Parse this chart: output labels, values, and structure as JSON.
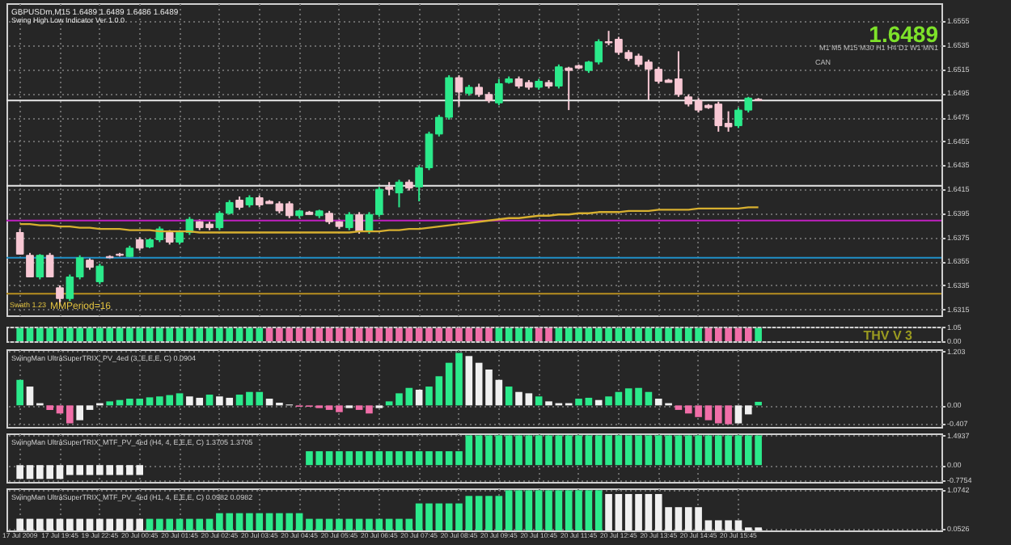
{
  "chart_data": [
    {
      "type": "candlestick",
      "title": "GBPUSDm,M15  1.6489 1.6489 1.6486 1.6489",
      "subtitle": "Swing High Low Indicator Ver 1.0.0",
      "annotations": [
        "1.6489",
        "M1 M5 M15 M30 H1 H4 D1 W1 MN1",
        "CAN",
        "Swath 1.23",
        "MMPeriod=16"
      ],
      "categories": [
        null,
        null,
        null,
        null,
        null,
        null,
        null,
        null,
        null,
        null,
        null,
        null,
        null,
        null,
        null,
        null,
        null,
        null,
        null,
        null,
        null,
        null,
        null,
        null,
        null,
        null,
        null,
        null,
        null,
        null,
        null,
        null,
        null,
        null,
        null,
        null,
        null,
        null,
        null,
        null,
        null,
        null,
        null,
        null,
        null,
        null,
        null,
        null,
        null,
        null,
        null,
        null,
        null,
        null,
        null,
        null,
        null,
        null,
        null,
        null,
        null,
        null,
        null,
        null,
        null,
        null,
        null,
        null,
        null,
        null,
        null,
        null,
        null,
        null,
        null,
        null,
        null,
        null,
        null,
        null,
        null,
        null,
        null,
        null,
        null,
        null,
        null,
        null,
        null,
        null,
        null,
        null
      ],
      "ohlc": [
        [
          1.6379,
          1.6382,
          1.6361,
          1.6361
        ],
        [
          1.636,
          1.6362,
          1.6342,
          1.6342
        ],
        [
          1.6342,
          1.6361,
          1.634,
          1.636
        ],
        [
          1.636,
          1.6362,
          1.6342,
          1.6342
        ],
        [
          1.6333,
          1.6335,
          1.6319,
          1.6324
        ],
        [
          1.6324,
          1.6344,
          1.6322,
          1.6342
        ],
        [
          1.6342,
          1.636,
          1.634,
          1.6358
        ],
        [
          1.6356,
          1.6358,
          1.6348,
          1.635
        ],
        [
          1.6338,
          1.6353,
          1.6336,
          1.6351
        ],
        [
          1.6358,
          1.636,
          1.6357,
          1.6359
        ],
        [
          1.636,
          1.6362,
          1.6359,
          1.6361
        ],
        [
          1.6359,
          1.6368,
          1.6358,
          1.6366
        ],
        [
          1.6373,
          1.6375,
          1.6364,
          1.6366
        ],
        [
          1.6367,
          1.6374,
          1.6366,
          1.6373
        ],
        [
          1.6373,
          1.6384,
          1.6371,
          1.6382
        ],
        [
          1.6379,
          1.6381,
          1.6369,
          1.6371
        ],
        [
          1.6371,
          1.6381,
          1.6369,
          1.6379
        ],
        [
          1.6379,
          1.6392,
          1.6377,
          1.639
        ],
        [
          1.6388,
          1.639,
          1.6381,
          1.6383
        ],
        [
          1.6386,
          1.6388,
          1.6381,
          1.6383
        ],
        [
          1.6383,
          1.6397,
          1.6381,
          1.6395
        ],
        [
          1.6395,
          1.6406,
          1.6394,
          1.6404
        ],
        [
          1.6406,
          1.6409,
          1.6398,
          1.64
        ],
        [
          1.6402,
          1.641,
          1.64,
          1.6408
        ],
        [
          1.6408,
          1.641,
          1.64,
          1.6402
        ],
        [
          1.6405,
          1.6406,
          1.6403,
          1.6403
        ],
        [
          1.6403,
          1.6405,
          1.6395,
          1.6397
        ],
        [
          1.6403,
          1.6405,
          1.6391,
          1.6393
        ],
        [
          1.6393,
          1.6398,
          1.6391,
          1.6397
        ],
        [
          1.6396,
          1.6397,
          1.6394,
          1.6394
        ],
        [
          1.6393,
          1.6398,
          1.6391,
          1.6397
        ],
        [
          1.6395,
          1.6397,
          1.6386,
          1.6388
        ],
        [
          1.6388,
          1.639,
          1.6382,
          1.6384
        ],
        [
          1.6383,
          1.6396,
          1.6381,
          1.6394
        ],
        [
          1.6394,
          1.6396,
          1.6378,
          1.638
        ],
        [
          1.638,
          1.6396,
          1.6378,
          1.6394
        ],
        [
          1.6394,
          1.6417,
          1.6392,
          1.6415
        ],
        [
          1.6417,
          1.6421,
          1.641,
          1.6415
        ],
        [
          1.6412,
          1.6423,
          1.64,
          1.6421
        ],
        [
          1.6421,
          1.6423,
          1.6414,
          1.6416
        ],
        [
          1.6417,
          1.6435,
          1.6405,
          1.6433
        ],
        [
          1.6433,
          1.6463,
          1.6431,
          1.6461
        ],
        [
          1.6461,
          1.6477,
          1.6459,
          1.6475
        ],
        [
          1.6475,
          1.651,
          1.6473,
          1.6508
        ],
        [
          1.6508,
          1.651,
          1.6484,
          1.6496
        ],
        [
          1.6495,
          1.6502,
          1.6493,
          1.65
        ],
        [
          1.65,
          1.6503,
          1.6492,
          1.6494
        ],
        [
          1.6494,
          1.6496,
          1.6487,
          1.6489
        ],
        [
          1.6487,
          1.6507,
          1.6485,
          1.6503
        ],
        [
          1.6504,
          1.6509,
          1.6503,
          1.6507
        ],
        [
          1.6507,
          1.6509,
          1.6499,
          1.6501
        ],
        [
          1.6504,
          1.6506,
          1.6498,
          1.65
        ],
        [
          1.65,
          1.6507,
          1.6498,
          1.6505
        ],
        [
          1.6504,
          1.6506,
          1.6499,
          1.6501
        ],
        [
          1.6501,
          1.6519,
          1.6499,
          1.6517
        ],
        [
          1.6516,
          1.6517,
          1.6481,
          1.6514
        ],
        [
          1.6518,
          1.6519,
          1.6515,
          1.6516
        ],
        [
          1.6514,
          1.6522,
          1.6512,
          1.6521
        ],
        [
          1.6521,
          1.654,
          1.6519,
          1.6538
        ],
        [
          1.6538,
          1.6547,
          1.6535,
          1.6537
        ],
        [
          1.654,
          1.6542,
          1.6527,
          1.6529
        ],
        [
          1.6529,
          1.6531,
          1.6522,
          1.6524
        ],
        [
          1.6526,
          1.6528,
          1.6517,
          1.6519
        ],
        [
          1.6521,
          1.6523,
          1.6489,
          1.6515
        ],
        [
          1.6515,
          1.6517,
          1.6503,
          1.6505
        ],
        [
          1.6506,
          1.6507,
          1.6504,
          1.6504
        ],
        [
          1.6507,
          1.653,
          1.6492,
          1.6494
        ],
        [
          1.6492,
          1.6494,
          1.6484,
          1.6486
        ],
        [
          1.6489,
          1.6491,
          1.6479,
          1.6481
        ],
        [
          1.6485,
          1.6486,
          1.6482,
          1.6483
        ],
        [
          1.6486,
          1.6488,
          1.6463,
          1.6468
        ],
        [
          1.647,
          1.648,
          1.6463,
          1.6467
        ],
        [
          1.6468,
          1.6483,
          1.6466,
          1.6481
        ],
        [
          1.6481,
          1.6492,
          1.6479,
          1.6491
        ],
        [
          1.649,
          1.6491,
          1.6489,
          1.6489
        ],
        null,
        null,
        null,
        null,
        null,
        null,
        null,
        null,
        null,
        null,
        null,
        null,
        null,
        null,
        null,
        null,
        null
      ],
      "colors": [
        "#f8c8d4",
        "#f8c8d4",
        "#2bea8b",
        "#f8c8d4",
        "#f8c8d4",
        "#2bea8b",
        "#2bea8b",
        "#f8c8d4",
        "#2bea8b",
        "#f8c8d4",
        "#f8c8d4",
        "#2bea8b",
        "#f8c8d4",
        "#2bea8b",
        "#2bea8b",
        "#f8c8d4",
        "#2bea8b",
        "#2bea8b",
        "#f8c8d4",
        "#f8c8d4",
        "#2bea8b",
        "#2bea8b",
        "#f8c8d4",
        "#2bea8b",
        "#f8c8d4",
        "#f8c8d4",
        "#f8c8d4",
        "#f8c8d4",
        "#2bea8b",
        "#f8c8d4",
        "#2bea8b",
        "#f8c8d4",
        "#f8c8d4",
        "#2bea8b",
        "#f8c8d4",
        "#2bea8b",
        "#2bea8b",
        "#f8c8d4",
        "#2bea8b",
        "#f8c8d4",
        "#2bea8b",
        "#2bea8b",
        "#2bea8b",
        "#2bea8b",
        "#f8c8d4",
        "#2bea8b",
        "#f8c8d4",
        "#f8c8d4",
        "#2bea8b",
        "#2bea8b",
        "#f8c8d4",
        "#f8c8d4",
        "#2bea8b",
        "#f8c8d4",
        "#2bea8b",
        "#f8c8d4",
        "#f8c8d4",
        "#2bea8b",
        "#2bea8b",
        "#f8c8d4",
        "#f8c8d4",
        "#f8c8d4",
        "#f8c8d4",
        "#f8c8d4",
        "#f8c8d4",
        "#f8c8d4",
        "#f8c8d4",
        "#f8c8d4",
        "#f8c8d4",
        "#f8c8d4",
        "#f8c8d4",
        "#f8c8d4",
        "#2bea8b",
        "#2bea8b",
        "#f8c8d4",
        null,
        null,
        null,
        null,
        null,
        null,
        null,
        null,
        null,
        null,
        null,
        null,
        null,
        null,
        null,
        null,
        null
      ],
      "series": [
        {
          "type": "line",
          "color": "#d8b030",
          "values": [
            1.6386,
            1.6386,
            1.6385,
            1.6385,
            1.6384,
            1.6384,
            1.6383,
            1.6383,
            1.6382,
            1.6382,
            1.6382,
            1.6381,
            1.6381,
            1.6381,
            1.638,
            1.638,
            1.638,
            1.638,
            1.6379,
            1.6379,
            1.6379,
            1.6379,
            1.6379,
            1.6379,
            1.6379,
            1.6379,
            1.6379,
            1.6379,
            1.6379,
            1.6379,
            1.6379,
            1.6379,
            1.6379,
            1.6379,
            1.638,
            1.638,
            1.638,
            1.6381,
            1.6381,
            1.6382,
            1.6382,
            1.6383,
            1.6384,
            1.6385,
            1.6386,
            1.6387,
            1.6388,
            1.6389,
            1.639,
            1.6391,
            1.6391,
            1.6392,
            1.6393,
            1.6393,
            1.6394,
            1.6394,
            1.6395,
            1.6395,
            1.6396,
            1.6396,
            1.6396,
            1.6397,
            1.6397,
            1.6397,
            1.6398,
            1.6398,
            1.6398,
            1.6398,
            1.6399,
            1.6399,
            1.6399,
            1.6399,
            1.6399,
            1.64,
            1.64,
            null,
            null,
            null,
            null,
            null,
            null,
            null,
            null,
            null,
            null,
            null,
            null,
            null,
            null,
            null,
            null,
            null
          ]
        }
      ],
      "ref_lines": [
        {
          "axis": "y",
          "value": 1.6489,
          "color": "#e8e8e8"
        },
        {
          "axis": "y",
          "value": 1.6418,
          "color": "#e8e8e8"
        },
        {
          "axis": "y",
          "value": 1.6389,
          "color": "#c020c0"
        },
        {
          "axis": "y",
          "value": 1.6358,
          "color": "#2090c8"
        },
        {
          "axis": "y",
          "value": 1.6328,
          "color": "#b89020"
        }
      ],
      "ylim": [
        1.631,
        1.657
      ],
      "yticks": [
        1.6555,
        1.6535,
        1.6515,
        1.6495,
        1.6475,
        1.6455,
        1.6435,
        1.6415,
        1.6395,
        1.6375,
        1.6355,
        1.6335,
        1.6315
      ],
      "grid": true,
      "tick_labels": "y"
    },
    {
      "type": "bar",
      "annotations": [
        "THV V 3"
      ],
      "categories": [
        null,
        null,
        null,
        null,
        null,
        null,
        null,
        null,
        null,
        null,
        null,
        null,
        null,
        null,
        null,
        null,
        null,
        null,
        null,
        null,
        null,
        null,
        null,
        null,
        null,
        null,
        null,
        null,
        null,
        null,
        null,
        null,
        null,
        null,
        null,
        null,
        null,
        null,
        null,
        null,
        null,
        null,
        null,
        null,
        null,
        null,
        null,
        null,
        null,
        null,
        null,
        null,
        null,
        null,
        null,
        null,
        null,
        null,
        null,
        null,
        null,
        null,
        null,
        null,
        null,
        null,
        null,
        null,
        null,
        null,
        null,
        null,
        null,
        null,
        null,
        null,
        null,
        null,
        null,
        null,
        null,
        null,
        null,
        null,
        null,
        null,
        null,
        null,
        null,
        null,
        null,
        null
      ],
      "values": [
        1,
        1,
        1,
        1,
        1,
        1,
        1,
        1,
        1,
        1,
        1,
        1,
        1,
        1,
        1,
        1,
        1,
        1,
        1,
        1,
        1,
        1,
        1,
        1,
        1,
        1,
        1,
        1,
        1,
        1,
        1,
        1,
        1,
        1,
        1,
        1,
        1,
        1,
        1,
        1,
        1,
        1,
        1,
        1,
        1,
        1,
        1,
        1,
        1,
        1,
        1,
        1,
        1,
        1,
        1,
        1,
        1,
        1,
        1,
        1,
        1,
        1,
        1,
        1,
        1,
        1,
        1,
        1,
        1,
        1,
        1,
        1,
        1,
        1,
        1,
        null,
        null,
        null,
        null,
        null,
        null,
        null,
        null,
        null,
        null,
        null,
        null,
        null,
        null,
        null,
        null,
        null
      ],
      "colors": [
        "#2bea8b",
        "#2bea8b",
        "#2bea8b",
        "#2bea8b",
        "#2bea8b",
        "#2bea8b",
        "#2bea8b",
        "#2bea8b",
        "#2bea8b",
        "#2bea8b",
        "#2bea8b",
        "#2bea8b",
        "#2bea8b",
        "#2bea8b",
        "#2bea8b",
        "#2bea8b",
        "#2bea8b",
        "#2bea8b",
        "#2bea8b",
        "#2bea8b",
        "#2bea8b",
        "#2bea8b",
        "#2bea8b",
        "#2bea8b",
        "#2bea8b",
        "#f06ea8",
        "#f06ea8",
        "#f06ea8",
        "#f06ea8",
        "#f06ea8",
        "#f06ea8",
        "#f06ea8",
        "#f06ea8",
        "#f06ea8",
        "#f06ea8",
        "#f06ea8",
        "#f06ea8",
        "#f06ea8",
        "#f06ea8",
        "#f06ea8",
        "#f06ea8",
        "#f06ea8",
        "#f06ea8",
        "#f06ea8",
        "#f06ea8",
        "#f06ea8",
        "#f06ea8",
        "#f06ea8",
        "#2bea8b",
        "#2bea8b",
        "#2bea8b",
        "#2bea8b",
        "#f06ea8",
        "#f06ea8",
        "#2bea8b",
        "#2bea8b",
        "#2bea8b",
        "#2bea8b",
        "#2bea8b",
        "#2bea8b",
        "#2bea8b",
        "#2bea8b",
        "#2bea8b",
        "#2bea8b",
        "#2bea8b",
        "#2bea8b",
        "#2bea8b",
        "#2bea8b",
        "#2bea8b",
        "#f06ea8",
        "#f06ea8",
        "#f06ea8",
        "#f06ea8",
        "#f06ea8",
        "#2bea8b",
        null,
        null,
        null,
        null,
        null,
        null,
        null,
        null,
        null,
        null,
        null,
        null,
        null,
        null,
        null,
        null,
        null
      ],
      "ylim": [
        0,
        1.1
      ],
      "yticks": [
        {
          "value": 1.05,
          "label": "1.05"
        },
        {
          "value": 0,
          "label": "0.00"
        }
      ],
      "grid": true,
      "tick_labels": "y"
    },
    {
      "type": "bar",
      "annotations": [
        "SwingMan UltraSuperTRIX_PV_4ed (3, E,E,E, C) 0.0904"
      ],
      "categories": [
        null,
        null,
        null,
        null,
        null,
        null,
        null,
        null,
        null,
        null,
        null,
        null,
        null,
        null,
        null,
        null,
        null,
        null,
        null,
        null,
        null,
        null,
        null,
        null,
        null,
        null,
        null,
        null,
        null,
        null,
        null,
        null,
        null,
        null,
        null,
        null,
        null,
        null,
        null,
        null,
        null,
        null,
        null,
        null,
        null,
        null,
        null,
        null,
        null,
        null,
        null,
        null,
        null,
        null,
        null,
        null,
        null,
        null,
        null,
        null,
        null,
        null,
        null,
        null,
        null,
        null,
        null,
        null,
        null,
        null,
        null,
        null,
        null,
        null,
        null,
        null,
        null,
        null,
        null,
        null,
        null,
        null,
        null,
        null,
        null,
        null,
        null,
        null,
        null,
        null,
        null,
        null
      ],
      "values": [
        0.57,
        0.42,
        0.05,
        -0.1,
        -0.18,
        -0.4,
        -0.33,
        -0.1,
        0.05,
        0.09,
        0.12,
        0.15,
        0.15,
        0.18,
        0.2,
        0.23,
        0.27,
        0.2,
        0.17,
        0.24,
        0.2,
        0.17,
        0.24,
        0.3,
        0.3,
        0.15,
        0.06,
        0.02,
        -0.03,
        -0.03,
        -0.06,
        -0.1,
        -0.15,
        -0.06,
        -0.1,
        -0.18,
        -0.06,
        0.09,
        0.27,
        0.39,
        0.35,
        0.42,
        0.65,
        0.95,
        1.17,
        1.1,
        0.95,
        0.8,
        0.57,
        0.42,
        0.3,
        0.27,
        0.2,
        0.09,
        0.05,
        0.05,
        0.15,
        0.17,
        0.12,
        0.2,
        0.3,
        0.38,
        0.39,
        0.3,
        0.15,
        0.05,
        -0.1,
        -0.18,
        -0.26,
        -0.33,
        -0.4,
        -0.42,
        -0.4,
        -0.2,
        0.08,
        null,
        null,
        null,
        null,
        null,
        null,
        null,
        null,
        null,
        null,
        null,
        null,
        null,
        null,
        null,
        null,
        null
      ],
      "colors": [
        "#2bea8b",
        "#f0f0f0",
        "#f0f0f0",
        "#f06ea8",
        "#f06ea8",
        "#f06ea8",
        "#f0f0f0",
        "#f0f0f0",
        "#f0f0f0",
        "#2bea8b",
        "#2bea8b",
        "#2bea8b",
        "#2bea8b",
        "#2bea8b",
        "#2bea8b",
        "#2bea8b",
        "#2bea8b",
        "#f0f0f0",
        "#f0f0f0",
        "#2bea8b",
        "#f0f0f0",
        "#f0f0f0",
        "#2bea8b",
        "#2bea8b",
        "#2bea8b",
        "#f0f0f0",
        "#f0f0f0",
        "#f0f0f0",
        "#f06ea8",
        "#f06ea8",
        "#f06ea8",
        "#f06ea8",
        "#f06ea8",
        "#f0f0f0",
        "#f06ea8",
        "#f06ea8",
        "#f0f0f0",
        "#2bea8b",
        "#2bea8b",
        "#2bea8b",
        "#f0f0f0",
        "#2bea8b",
        "#2bea8b",
        "#2bea8b",
        "#2bea8b",
        "#f0f0f0",
        "#f0f0f0",
        "#f0f0f0",
        "#f0f0f0",
        "#2bea8b",
        "#f0f0f0",
        "#f0f0f0",
        "#2bea8b",
        "#f0f0f0",
        "#f0f0f0",
        "#f0f0f0",
        "#2bea8b",
        "#2bea8b",
        "#f0f0f0",
        "#2bea8b",
        "#2bea8b",
        "#2bea8b",
        "#2bea8b",
        "#2bea8b",
        "#f0f0f0",
        "#f0f0f0",
        "#f06ea8",
        "#f06ea8",
        "#f06ea8",
        "#f06ea8",
        "#f06ea8",
        "#f06ea8",
        "#f0f0f0",
        "#f0f0f0",
        "#2bea8b",
        null,
        null,
        null,
        null,
        null,
        null,
        null,
        null,
        null,
        null,
        null,
        null,
        null,
        null,
        null,
        null,
        null
      ],
      "ylim": [
        -0.48,
        1.25
      ],
      "yticks": [
        {
          "value": 1.203,
          "label": "1.203"
        },
        {
          "value": 0,
          "label": "0.00"
        },
        {
          "value": -0.407,
          "label": "-0.407"
        }
      ],
      "grid": true,
      "tick_labels": "y"
    },
    {
      "type": "bar",
      "annotations": [
        "SwingMan UltraSuperTRIX_MTF_PV_4ed (H4, 4, E,E,E, C) 1.3705 1.3705"
      ],
      "categories": [
        null,
        null,
        null,
        null,
        null,
        null,
        null,
        null,
        null,
        null,
        null,
        null,
        null,
        null,
        null,
        null,
        null,
        null,
        null,
        null,
        null,
        null,
        null,
        null,
        null,
        null,
        null,
        null,
        null,
        null,
        null,
        null,
        null,
        null,
        null,
        null,
        null,
        null,
        null,
        null,
        null,
        null,
        null,
        null,
        null,
        null,
        null,
        null,
        null,
        null,
        null,
        null,
        null,
        null,
        null,
        null,
        null,
        null,
        null,
        null,
        null,
        null,
        null,
        null,
        null,
        null,
        null,
        null,
        null,
        null,
        null,
        null,
        null,
        null,
        null,
        null,
        null,
        null,
        null,
        null,
        null,
        null,
        null,
        null,
        null,
        null,
        null,
        null,
        null,
        null,
        null,
        null
      ],
      "values": [
        -0.7,
        -0.7,
        -0.7,
        -0.7,
        -0.7,
        -0.5,
        -0.5,
        -0.5,
        -0.5,
        -0.5,
        -0.5,
        -0.5,
        -0.5,
        null,
        null,
        null,
        null,
        null,
        null,
        null,
        null,
        null,
        null,
        null,
        null,
        null,
        null,
        null,
        null,
        0.7,
        0.7,
        0.7,
        0.7,
        0.7,
        0.7,
        0.7,
        0.7,
        0.7,
        0.7,
        0.7,
        0.7,
        0.7,
        0.7,
        0.7,
        0.7,
        1.5,
        1.5,
        1.5,
        1.5,
        1.5,
        1.5,
        1.5,
        1.5,
        1.5,
        1.5,
        1.5,
        1.5,
        1.5,
        1.5,
        1.5,
        1.5,
        1.5,
        1.5,
        1.5,
        1.5,
        1.5,
        1.5,
        1.5,
        1.5,
        1.5,
        1.5,
        1.5,
        1.5,
        1.5,
        1.5,
        null,
        null,
        null,
        null,
        null,
        null,
        null,
        null,
        null,
        null,
        null,
        null,
        null,
        null,
        null,
        null,
        null
      ],
      "colors": [
        "#f0f0f0",
        "#f0f0f0",
        "#f0f0f0",
        "#f0f0f0",
        "#f0f0f0",
        "#f0f0f0",
        "#f0f0f0",
        "#f0f0f0",
        "#f0f0f0",
        "#f0f0f0",
        "#f0f0f0",
        "#f0f0f0",
        "#f0f0f0",
        null,
        null,
        null,
        null,
        null,
        null,
        null,
        null,
        null,
        null,
        null,
        null,
        null,
        null,
        null,
        null,
        "#2bea8b",
        "#2bea8b",
        "#2bea8b",
        "#2bea8b",
        "#2bea8b",
        "#2bea8b",
        "#2bea8b",
        "#2bea8b",
        "#2bea8b",
        "#2bea8b",
        "#2bea8b",
        "#2bea8b",
        "#2bea8b",
        "#2bea8b",
        "#2bea8b",
        "#2bea8b",
        "#2bea8b",
        "#2bea8b",
        "#2bea8b",
        "#2bea8b",
        "#2bea8b",
        "#2bea8b",
        "#2bea8b",
        "#2bea8b",
        "#2bea8b",
        "#2bea8b",
        "#2bea8b",
        "#2bea8b",
        "#2bea8b",
        "#2bea8b",
        "#2bea8b",
        "#2bea8b",
        "#2bea8b",
        "#2bea8b",
        "#2bea8b",
        "#2bea8b",
        "#2bea8b",
        "#2bea8b",
        "#2bea8b",
        "#2bea8b",
        "#2bea8b",
        "#2bea8b",
        "#2bea8b",
        "#2bea8b",
        "#2bea8b",
        "#2bea8b",
        null,
        null,
        null,
        null,
        null,
        null,
        null,
        null,
        null,
        null,
        null,
        null,
        null,
        null,
        null,
        null,
        null
      ],
      "ylim": [
        -0.85,
        1.6
      ],
      "yticks": [
        {
          "value": 1.4937,
          "label": "1.4937"
        },
        {
          "value": 0,
          "label": "0.00"
        },
        {
          "value": -0.7754,
          "label": "-0.7754"
        }
      ],
      "grid": true,
      "tick_labels": "y"
    },
    {
      "type": "bar",
      "annotations": [
        "SwingMan UltraSuperTRIX_MTF_PV_4ed (H1, 4, E,E,E, C) 0.0982 0.0982"
      ],
      "categories": [
        "17 Jul 2009",
        null,
        null,
        null,
        "17 Jul 19:45",
        null,
        null,
        null,
        "19 Jul 22:45",
        null,
        null,
        null,
        "20 Jul 00:45",
        null,
        null,
        null,
        "20 Jul 01:45",
        null,
        null,
        null,
        "20 Jul 02:45",
        null,
        null,
        null,
        "20 Jul 03:45",
        null,
        null,
        null,
        "20 Jul 04:45",
        null,
        null,
        null,
        "20 Jul 05:45",
        null,
        null,
        null,
        "20 Jul 06:45",
        null,
        null,
        null,
        "20 Jul 07:45",
        null,
        null,
        null,
        "20 Jul 08:45",
        null,
        null,
        null,
        "20 Jul 09:45",
        null,
        null,
        null,
        "20 Jul 10:45",
        null,
        null,
        null,
        "20 Jul 11:45",
        null,
        null,
        null,
        "20 Jul 12:45",
        null,
        null,
        null,
        "20 Jul 13:45",
        null,
        null,
        null,
        "20 Jul 14:45",
        null,
        null,
        null,
        "20 Jul 15:45",
        null,
        null,
        null,
        null,
        null,
        null,
        null,
        null,
        null,
        null,
        null,
        null,
        null,
        null,
        null,
        null,
        null,
        null,
        null
      ],
      "values": [
        0.31,
        0.31,
        0.31,
        0.31,
        0.31,
        0.31,
        0.31,
        0.31,
        0.31,
        0.31,
        0.31,
        0.31,
        0.31,
        0.31,
        0.31,
        0.31,
        0.31,
        0.31,
        0.31,
        0.31,
        0.46,
        0.46,
        0.46,
        0.46,
        0.46,
        0.46,
        0.46,
        0.46,
        0.46,
        0.31,
        0.31,
        0.31,
        0.31,
        0.31,
        0.31,
        0.31,
        0.31,
        0.31,
        0.31,
        0.31,
        0.72,
        0.72,
        0.72,
        0.72,
        0.72,
        0.92,
        0.92,
        0.92,
        0.92,
        1.07,
        1.07,
        1.07,
        1.07,
        1.07,
        1.07,
        1.07,
        1.07,
        1.07,
        1.07,
        0.97,
        0.97,
        0.97,
        0.97,
        0.97,
        0.97,
        0.62,
        0.62,
        0.62,
        0.62,
        0.27,
        0.27,
        0.27,
        0.27,
        0.08,
        0.08,
        null,
        null,
        null,
        null,
        null,
        null,
        null,
        null,
        null,
        null,
        null,
        null,
        null,
        null,
        null,
        null,
        null
      ],
      "colors": [
        "#f0f0f0",
        "#f0f0f0",
        "#f0f0f0",
        "#f0f0f0",
        "#f0f0f0",
        "#f0f0f0",
        "#f0f0f0",
        "#f0f0f0",
        "#f0f0f0",
        "#f0f0f0",
        "#f0f0f0",
        "#f0f0f0",
        "#f0f0f0",
        "#2bea8b",
        "#2bea8b",
        "#2bea8b",
        "#2bea8b",
        "#2bea8b",
        "#2bea8b",
        "#2bea8b",
        "#2bea8b",
        "#2bea8b",
        "#2bea8b",
        "#2bea8b",
        "#2bea8b",
        "#2bea8b",
        "#2bea8b",
        "#2bea8b",
        "#2bea8b",
        "#2bea8b",
        "#2bea8b",
        "#2bea8b",
        "#2bea8b",
        "#2bea8b",
        "#2bea8b",
        "#2bea8b",
        "#2bea8b",
        "#2bea8b",
        "#2bea8b",
        "#2bea8b",
        "#2bea8b",
        "#2bea8b",
        "#2bea8b",
        "#2bea8b",
        "#2bea8b",
        "#2bea8b",
        "#2bea8b",
        "#2bea8b",
        "#2bea8b",
        "#2bea8b",
        "#2bea8b",
        "#2bea8b",
        "#2bea8b",
        "#2bea8b",
        "#2bea8b",
        "#2bea8b",
        "#2bea8b",
        "#2bea8b",
        "#2bea8b",
        "#f0f0f0",
        "#f0f0f0",
        "#f0f0f0",
        "#f0f0f0",
        "#f0f0f0",
        "#f0f0f0",
        "#f0f0f0",
        "#f0f0f0",
        "#f0f0f0",
        "#f0f0f0",
        "#f0f0f0",
        "#f0f0f0",
        "#f0f0f0",
        "#f0f0f0",
        "#f0f0f0",
        "#f0f0f0",
        null,
        null,
        null,
        null,
        null,
        null,
        null,
        null,
        null,
        null,
        null,
        null,
        null,
        null,
        null,
        null,
        null
      ],
      "ylim": [
        0,
        1.12
      ],
      "yticks": [
        {
          "value": 1.0742,
          "label": "1.0742"
        },
        {
          "value": 0.0526,
          "label": "0.0526"
        }
      ],
      "grid": true
    }
  ]
}
